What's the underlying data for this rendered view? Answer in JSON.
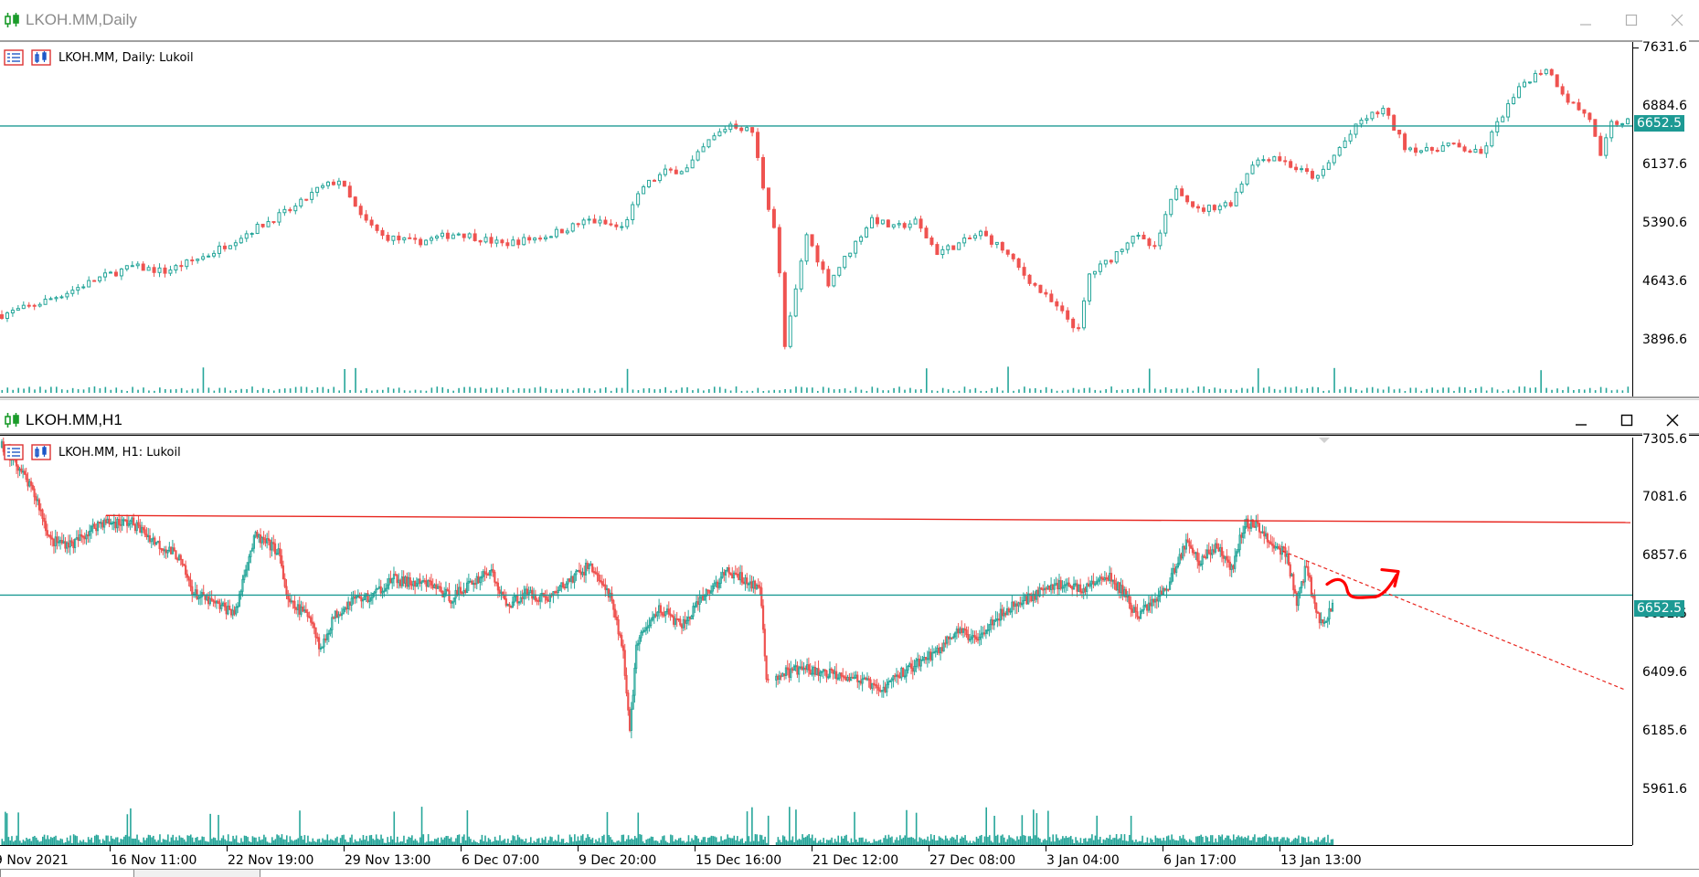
{
  "colors": {
    "bull": "#26a69a",
    "bear": "#ef5350",
    "level_line": "#1d9a94",
    "resistance": "#e8261f",
    "price_tag_bg": "#1d9a94",
    "hand_drawn": "#ff0000"
  },
  "window_daily": {
    "title": "LKOH.MM,Daily",
    "icon": "candlestick-chart-icon",
    "legend": "LKOH.MM, Daily:  Lukoil",
    "y_ticks": [
      "7631.6",
      "6884.6",
      "6137.6",
      "5390.6",
      "4643.6",
      "3896.6"
    ],
    "price_tag": "6652.5",
    "buttons": [
      "minimize-icon",
      "maximize-icon",
      "close-icon"
    ]
  },
  "window_h1": {
    "title": "LKOH.MM,H1",
    "icon": "candlestick-chart-icon",
    "legend": "LKOH.MM, H1:  Lukoil",
    "y_ticks": [
      "7305.6",
      "7081.6",
      "6857.6",
      "6652.5",
      "6409.6",
      "6185.6",
      "5961.6"
    ],
    "price_tag": "6652.5",
    "x_ticks": [
      "9 Nov 2021",
      "16 Nov 11:00",
      "22 Nov 19:00",
      "29 Nov 13:00",
      "6 Dec 07:00",
      "9 Dec 20:00",
      "15 Dec 16:00",
      "21 Dec 12:00",
      "27 Dec 08:00",
      "3 Jan 04:00",
      "6 Jan 17:00",
      "13 Jan 13:00"
    ],
    "buttons": [
      "minimize-icon",
      "maximize-icon",
      "close-icon"
    ]
  },
  "chart_data": [
    {
      "type": "candlestick",
      "symbol": "LKOH.MM",
      "timeframe": "Daily",
      "ylim": [
        3600,
        7700
      ],
      "y_ticks": [
        7631.6,
        6884.6,
        6137.6,
        5390.6,
        4643.6,
        3896.6
      ],
      "horizontal_levels": [
        6652.5
      ],
      "close_path": [
        [
          0,
          4300
        ],
        [
          6,
          4420
        ],
        [
          12,
          4580
        ],
        [
          18,
          4760
        ],
        [
          24,
          4900
        ],
        [
          30,
          4840
        ],
        [
          38,
          5050
        ],
        [
          44,
          5280
        ],
        [
          50,
          5500
        ],
        [
          54,
          5640
        ],
        [
          58,
          5860
        ],
        [
          62,
          5980
        ],
        [
          66,
          5520
        ],
        [
          70,
          5280
        ],
        [
          76,
          5200
        ],
        [
          84,
          5320
        ],
        [
          92,
          5180
        ],
        [
          100,
          5280
        ],
        [
          108,
          5480
        ],
        [
          114,
          5380
        ],
        [
          118,
          5900
        ],
        [
          122,
          6080
        ],
        [
          126,
          6120
        ],
        [
          130,
          6460
        ],
        [
          134,
          6680
        ],
        [
          138,
          6580
        ],
        [
          140,
          5900
        ],
        [
          142,
          5400
        ],
        [
          143,
          4800
        ],
        [
          144,
          3900
        ],
        [
          146,
          4600
        ],
        [
          148,
          5300
        ],
        [
          152,
          4700
        ],
        [
          156,
          5100
        ],
        [
          160,
          5500
        ],
        [
          164,
          5380
        ],
        [
          168,
          5460
        ],
        [
          172,
          5080
        ],
        [
          176,
          5180
        ],
        [
          180,
          5320
        ],
        [
          184,
          5120
        ],
        [
          188,
          4800
        ],
        [
          192,
          4520
        ],
        [
          196,
          4250
        ],
        [
          198,
          4100
        ],
        [
          200,
          4800
        ],
        [
          204,
          5000
        ],
        [
          208,
          5300
        ],
        [
          212,
          5120
        ],
        [
          216,
          5900
        ],
        [
          220,
          5600
        ],
        [
          226,
          5700
        ],
        [
          230,
          6200
        ],
        [
          234,
          6280
        ],
        [
          238,
          6120
        ],
        [
          242,
          6000
        ],
        [
          246,
          6380
        ],
        [
          250,
          6720
        ],
        [
          254,
          6860
        ],
        [
          258,
          6400
        ],
        [
          262,
          6340
        ],
        [
          266,
          6420
        ],
        [
          272,
          6300
        ],
        [
          276,
          6800
        ],
        [
          280,
          7200
        ],
        [
          284,
          7380
        ],
        [
          288,
          6980
        ],
        [
          292,
          6750
        ],
        [
          294,
          6250
        ],
        [
          296,
          6680
        ],
        [
          300,
          6720
        ]
      ],
      "volume": "per-bar volume histogram shown along bottom"
    },
    {
      "type": "candlestick",
      "symbol": "LKOH.MM",
      "timeframe": "H1",
      "ylim": [
        5880,
        7320
      ],
      "y_ticks": [
        7305.6,
        7081.6,
        6857.6,
        6652.5,
        6409.6,
        6185.6,
        5961.6
      ],
      "x": [
        "9 Nov 2021",
        "16 Nov 11:00",
        "22 Nov 19:00",
        "29 Nov 13:00",
        "6 Dec 07:00",
        "9 Dec 20:00",
        "15 Dec 16:00",
        "21 Dec 12:00",
        "27 Dec 08:00",
        "3 Jan 04:00",
        "6 Jan 17:00",
        "13 Jan 13:00"
      ],
      "horizontal_levels": [
        6652.5
      ],
      "resistance_line": [
        [
          6990,
          6960
        ]
      ],
      "trend_line_dashed": "descending from ~6840 at 13 Jan toward ~6250",
      "close_path": [
        [
          0,
          7280
        ],
        [
          10,
          7200
        ],
        [
          22,
          7050
        ],
        [
          30,
          6880
        ],
        [
          44,
          6870
        ],
        [
          60,
          6960
        ],
        [
          80,
          6960
        ],
        [
          96,
          6870
        ],
        [
          108,
          6820
        ],
        [
          118,
          6660
        ],
        [
          132,
          6610
        ],
        [
          144,
          6580
        ],
        [
          150,
          6780
        ],
        [
          156,
          6900
        ],
        [
          170,
          6840
        ],
        [
          176,
          6620
        ],
        [
          190,
          6560
        ],
        [
          196,
          6420
        ],
        [
          204,
          6560
        ],
        [
          216,
          6640
        ],
        [
          226,
          6640
        ],
        [
          240,
          6720
        ],
        [
          254,
          6700
        ],
        [
          264,
          6700
        ],
        [
          276,
          6640
        ],
        [
          290,
          6710
        ],
        [
          300,
          6760
        ],
        [
          310,
          6610
        ],
        [
          322,
          6660
        ],
        [
          336,
          6640
        ],
        [
          350,
          6720
        ],
        [
          362,
          6780
        ],
        [
          374,
          6640
        ],
        [
          382,
          6420
        ],
        [
          386,
          6060
        ],
        [
          390,
          6440
        ],
        [
          404,
          6600
        ],
        [
          418,
          6520
        ],
        [
          432,
          6650
        ],
        [
          446,
          6750
        ],
        [
          456,
          6720
        ],
        [
          466,
          6680
        ],
        [
          470,
          6300
        ],
        [
          480,
          6320
        ],
        [
          492,
          6340
        ],
        [
          504,
          6320
        ],
        [
          516,
          6320
        ],
        [
          532,
          6280
        ],
        [
          540,
          6240
        ],
        [
          548,
          6300
        ],
        [
          562,
          6360
        ],
        [
          576,
          6420
        ],
        [
          586,
          6500
        ],
        [
          598,
          6470
        ],
        [
          608,
          6540
        ],
        [
          620,
          6600
        ],
        [
          636,
          6660
        ],
        [
          650,
          6700
        ],
        [
          664,
          6680
        ],
        [
          680,
          6730
        ],
        [
          690,
          6660
        ],
        [
          698,
          6560
        ],
        [
          706,
          6620
        ],
        [
          716,
          6680
        ],
        [
          728,
          6880
        ],
        [
          736,
          6800
        ],
        [
          748,
          6860
        ],
        [
          756,
          6760
        ],
        [
          764,
          6960
        ],
        [
          772,
          6940
        ],
        [
          780,
          6880
        ],
        [
          790,
          6820
        ],
        [
          796,
          6620
        ],
        [
          802,
          6780
        ],
        [
          808,
          6560
        ],
        [
          812,
          6540
        ],
        [
          818,
          6600
        ]
      ],
      "volume": "per-bar volume histogram shown along bottom"
    }
  ]
}
